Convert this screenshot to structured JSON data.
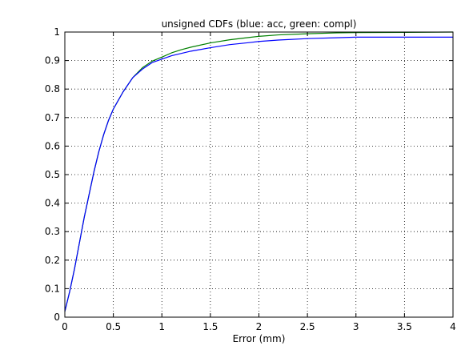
{
  "chart_data": {
    "type": "line",
    "title": "unsigned CDFs (blue: acc, green: compl)",
    "xlabel": "Error (mm)",
    "ylabel": "",
    "xlim": [
      0,
      4
    ],
    "ylim": [
      0,
      1
    ],
    "grid": true,
    "x_ticks": [
      0,
      0.5,
      1,
      1.5,
      2,
      2.5,
      3,
      3.5,
      4
    ],
    "x_tick_labels": [
      "0",
      "0.5",
      "1",
      "1.5",
      "2",
      "2.5",
      "3",
      "3.5",
      "4"
    ],
    "y_ticks": [
      0,
      0.1,
      0.2,
      0.3,
      0.4,
      0.5,
      0.6,
      0.7,
      0.8,
      0.9,
      1
    ],
    "y_tick_labels": [
      "0",
      "0.1",
      "0.2",
      "0.3",
      "0.4",
      "0.5",
      "0.6",
      "0.7",
      "0.8",
      "0.9",
      "1"
    ],
    "series": [
      {
        "color": "#0000ff",
        "x": [
          0,
          0.05,
          0.1,
          0.15,
          0.2,
          0.25,
          0.3,
          0.35,
          0.4,
          0.45,
          0.5,
          0.6,
          0.7,
          0.8,
          0.9,
          1.0,
          1.1,
          1.2,
          1.3,
          1.5,
          1.7,
          1.9,
          2.0,
          2.2,
          2.5,
          2.8,
          3.0,
          3.5,
          4.0
        ],
        "y": [
          0.02,
          0.09,
          0.17,
          0.26,
          0.35,
          0.43,
          0.51,
          0.58,
          0.64,
          0.69,
          0.73,
          0.79,
          0.84,
          0.87,
          0.893,
          0.905,
          0.917,
          0.925,
          0.933,
          0.945,
          0.956,
          0.963,
          0.967,
          0.972,
          0.977,
          0.98,
          0.982,
          0.982,
          0.982
        ]
      },
      {
        "color": "#008000",
        "x": [
          0,
          0.05,
          0.1,
          0.15,
          0.2,
          0.25,
          0.3,
          0.35,
          0.4,
          0.45,
          0.5,
          0.6,
          0.7,
          0.8,
          0.9,
          1.0,
          1.1,
          1.2,
          1.3,
          1.5,
          1.7,
          1.9,
          2.0,
          2.2,
          2.5,
          2.8,
          3.0,
          3.5,
          4.0
        ],
        "y": [
          0.02,
          0.09,
          0.17,
          0.26,
          0.35,
          0.43,
          0.51,
          0.58,
          0.64,
          0.69,
          0.73,
          0.79,
          0.84,
          0.875,
          0.898,
          0.912,
          0.927,
          0.938,
          0.947,
          0.962,
          0.973,
          0.981,
          0.985,
          0.99,
          0.994,
          0.997,
          0.998,
          0.999,
          1.0
        ]
      }
    ]
  }
}
